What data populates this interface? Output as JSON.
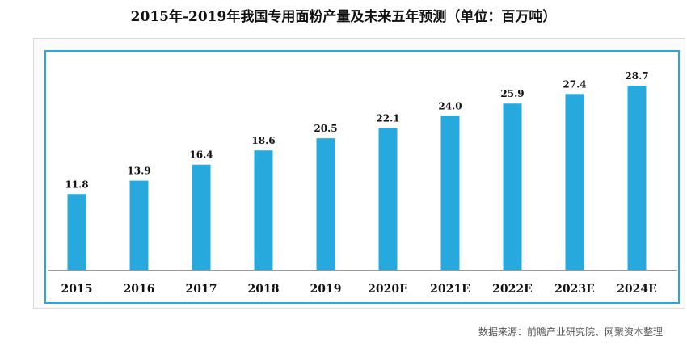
{
  "title": "2015年-2019年我国专用面粉产量及未来五年预测（单位：百万吨）",
  "source": "数据来源：前瞻产业研究院、网聚资本整理",
  "colors": {
    "bar": "#27a9de",
    "frame": "#27a9de",
    "baseline": "#9a9a9a",
    "text": "#111111"
  },
  "chart_data": {
    "type": "bar",
    "title": "2015年-2019年我国专用面粉产量及未来五年预测（单位：百万吨）",
    "xlabel": "",
    "ylabel": "",
    "categories": [
      "2015",
      "2016",
      "2017",
      "2018",
      "2019",
      "2020E",
      "2021E",
      "2022E",
      "2023E",
      "2024E"
    ],
    "values": [
      11.8,
      13.9,
      16.4,
      18.6,
      20.5,
      22.1,
      24.0,
      25.9,
      27.4,
      28.7
    ],
    "value_labels": [
      "11.8",
      "13.9",
      "16.4",
      "18.6",
      "20.5",
      "22.1",
      "24.0",
      "25.9",
      "27.4",
      "28.7"
    ],
    "ylim": [
      0,
      30
    ],
    "grid": false,
    "legend": "none"
  }
}
